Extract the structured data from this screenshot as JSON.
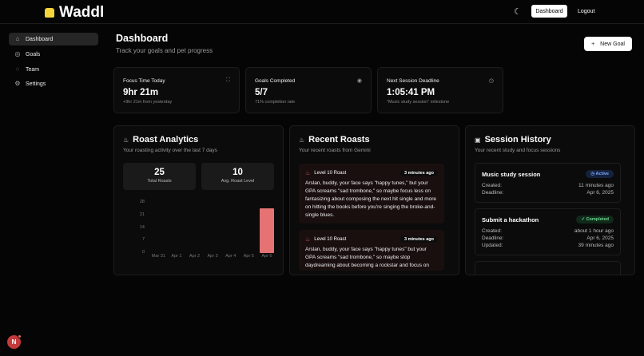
{
  "header": {
    "logo": "Waddl",
    "nav_dashboard": "Dashboard",
    "nav_logout": "Logout",
    "theme_icon": "moon-icon"
  },
  "sidebar": {
    "items": [
      {
        "label": "Dashboard",
        "icon": "home-icon",
        "active": true
      },
      {
        "label": "Goals",
        "icon": "target-icon"
      },
      {
        "label": "Team",
        "icon": "chat-icon"
      },
      {
        "label": "Settings",
        "icon": "gear-icon"
      }
    ]
  },
  "page": {
    "title": "Dashboard",
    "subtitle": "Track your goals and pet progress",
    "new_goal": "New Goal"
  },
  "stats": [
    {
      "label": "Focus Time Today",
      "value": "9hr 21m",
      "sub": "+9hr 21m from yesterday",
      "icon": "focus-icon"
    },
    {
      "label": "Goals Completed",
      "value": "5/7",
      "sub": "71% completion rate",
      "icon": "target-icon"
    },
    {
      "label": "Next Session Deadline",
      "value": "1:05:41 PM",
      "sub": "\"Music study session\" milestone",
      "icon": "clock-icon"
    }
  ],
  "analytics": {
    "title": "Roast Analytics",
    "subtitle": "Your roasting activity over the last 7 days",
    "total": "25",
    "total_label": "Total Roasts",
    "avg": "10",
    "avg_label": "Avg. Roast Level"
  },
  "chart_data": {
    "type": "bar",
    "categories": [
      "Mar 31",
      "Apr 1",
      "Apr 2",
      "Apr 3",
      "Apr 4",
      "Apr 5",
      "Apr 6"
    ],
    "values": [
      0,
      0,
      0,
      0,
      0,
      0,
      25
    ],
    "yticks": [
      "0",
      "7",
      "14",
      "21",
      "28"
    ],
    "ylim": [
      0,
      28
    ],
    "color": "#e57373",
    "grid": false
  },
  "roasts": {
    "title": "Recent Roasts",
    "subtitle": "Your recent roasts from Gemini",
    "items": [
      {
        "level": "Level 10 Roast",
        "time": "3 minutes ago",
        "text": "Arslan, buddy, your face says \"happy tunes,\" but your GPA screams \"sad trombone,\" so maybe focus less on fantasizing about composing the next hit single and more on hitting the books before you're singing the broke-and-single blues."
      },
      {
        "level": "Level 10 Roast",
        "time": "3 minutes ago",
        "text": "Arslan, buddy, your face says \"happy tunes\" but your GPA screams \"sad trombone,\" so maybe stop daydreaming about becoming a rockstar and focus on"
      }
    ]
  },
  "sessions": {
    "title": "Session History",
    "subtitle": "Your recent study and focus sessions",
    "items": [
      {
        "name": "Music study session",
        "status": "Active",
        "rows": [
          [
            "Created:",
            "11 minutes ago"
          ],
          [
            "Deadline:",
            "Apr 6, 2025"
          ]
        ]
      },
      {
        "name": "Submit a hackathon",
        "status": "Completed",
        "rows": [
          [
            "Created:",
            "about 1 hour ago"
          ],
          [
            "Deadline:",
            "Apr 6, 2025"
          ],
          [
            "Updated:",
            "39 minutes ago"
          ]
        ]
      }
    ]
  },
  "user": {
    "initial": "N"
  }
}
